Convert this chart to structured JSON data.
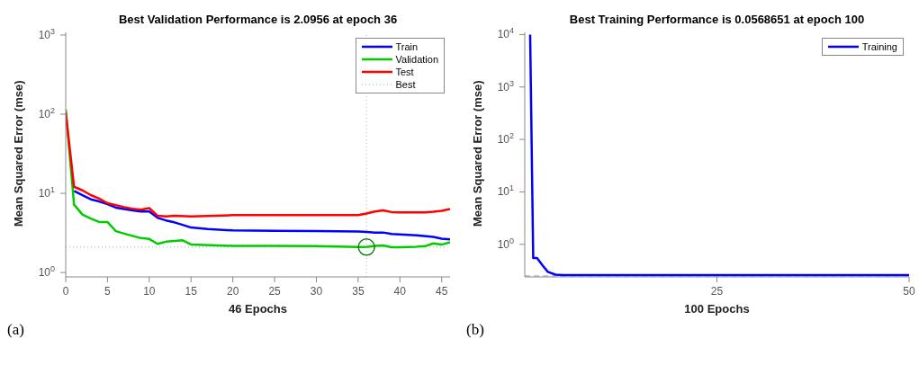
{
  "chart_data": [
    {
      "type": "line",
      "title": "Best Validation Performance is 2.0956 at epoch 36",
      "xlabel": "46 Epochs",
      "ylabel": "Mean Squared Error  (mse)",
      "xlim": [
        0,
        46
      ],
      "xticks": [
        0,
        5,
        10,
        15,
        20,
        25,
        30,
        35,
        40,
        45
      ],
      "ylim": [
        0.88,
        1080
      ],
      "yticks": [
        {
          "value": 1,
          "label": "10$^{0}$"
        },
        {
          "value": 10,
          "label": "10$^{1}$"
        },
        {
          "value": 100,
          "label": "10$^{2}$"
        },
        {
          "value": 1000,
          "label": "10$^{3}$"
        }
      ],
      "log": "y",
      "legend": "top right",
      "annotations": [
        "(a)"
      ],
      "series": [
        {
          "name": "Train",
          "color": "#0000ff",
          "x": [
            1,
            2,
            3,
            4,
            5,
            6,
            7,
            8,
            9,
            10,
            11,
            12,
            13,
            14,
            15,
            17,
            20,
            25,
            30,
            35,
            36,
            37,
            38,
            39,
            40,
            42,
            44,
            45,
            46
          ],
          "values": [
            10.7,
            9.5,
            8.4,
            7.9,
            7.3,
            6.6,
            6.35,
            6.1,
            5.9,
            5.9,
            4.9,
            4.55,
            4.3,
            4.0,
            3.7,
            3.55,
            3.4,
            3.37,
            3.33,
            3.3,
            3.25,
            3.2,
            3.2,
            3.07,
            3.02,
            2.95,
            2.81,
            2.68,
            2.62
          ]
        },
        {
          "name": "Validation",
          "color": "#00cc00",
          "x": [
            0,
            1,
            2,
            3,
            4,
            5,
            6,
            7,
            8,
            9,
            10,
            11,
            12,
            13,
            14,
            15,
            20,
            25,
            30,
            35,
            36,
            37,
            38,
            39,
            40,
            42,
            43,
            44,
            45,
            46
          ],
          "values": [
            115,
            7.2,
            5.4,
            4.8,
            4.35,
            4.35,
            3.33,
            3.1,
            2.9,
            2.72,
            2.65,
            2.3,
            2.45,
            2.5,
            2.55,
            2.26,
            2.17,
            2.17,
            2.15,
            2.1,
            2.0956,
            2.17,
            2.2,
            2.09,
            2.09,
            2.12,
            2.15,
            2.33,
            2.25,
            2.41
          ]
        },
        {
          "name": "Test",
          "color": "#ff0000",
          "x": [
            0,
            1,
            2,
            3,
            4,
            5,
            6,
            7,
            8,
            9,
            10,
            11,
            12,
            13,
            15,
            20,
            25,
            30,
            35,
            36,
            37,
            38,
            39,
            40,
            43,
            44,
            45,
            46
          ],
          "values": [
            105,
            12.1,
            10.9,
            9.5,
            8.6,
            7.5,
            7.1,
            6.7,
            6.4,
            6.2,
            6.5,
            5.2,
            5.1,
            5.2,
            5.1,
            5.3,
            5.3,
            5.3,
            5.3,
            5.55,
            5.9,
            6.1,
            5.8,
            5.75,
            5.75,
            5.85,
            6.0,
            6.35
          ]
        },
        {
          "name": "Best",
          "type": "line",
          "line_style": "dotted",
          "color": "#80d080",
          "x": [
            36,
            36
          ],
          "values": [
            0.88,
            1080
          ]
        },
        {
          "type": "scatter",
          "marker": "circle",
          "color": "#1a7a1a",
          "x": [
            36
          ],
          "values": [
            2.0956
          ]
        }
      ],
      "ref_lines": [
        {
          "axis": "y",
          "value": 2.0956,
          "color": "#80d080",
          "line_style": "dotted"
        }
      ]
    },
    {
      "type": "line",
      "title": "Best Training Performance is 0.0568651 at epoch 100",
      "xlabel": "100 Epochs",
      "ylabel": "Mean Squared Error  (mse)",
      "xlim": [
        0,
        50
      ],
      "xticks": [
        25,
        50
      ],
      "ylim": [
        0.24,
        11000
      ],
      "yticks": [
        {
          "value": 1,
          "label": "10$^{0}$"
        },
        {
          "value": 10,
          "label": "10$^{1}$"
        },
        {
          "value": 100,
          "label": "10$^{2}$"
        },
        {
          "value": 1000,
          "label": "10$^{3}$"
        },
        {
          "value": 10000,
          "label": "10$^{4}$"
        }
      ],
      "log": "y",
      "legend": "top right",
      "annotations": [
        "(b)"
      ],
      "series": [
        {
          "name": "Training",
          "color": "#0000ff",
          "x": [
            0.7,
            1.1,
            1.6,
            2.3,
            3,
            4,
            5,
            50
          ],
          "values": [
            10000,
            0.55,
            0.55,
            0.4,
            0.3,
            0.265,
            0.26,
            0.26
          ]
        }
      ],
      "ref_lines": [
        {
          "axis": "y",
          "value": 0.25,
          "color": "#999999",
          "line_style": "dashed"
        }
      ]
    }
  ]
}
